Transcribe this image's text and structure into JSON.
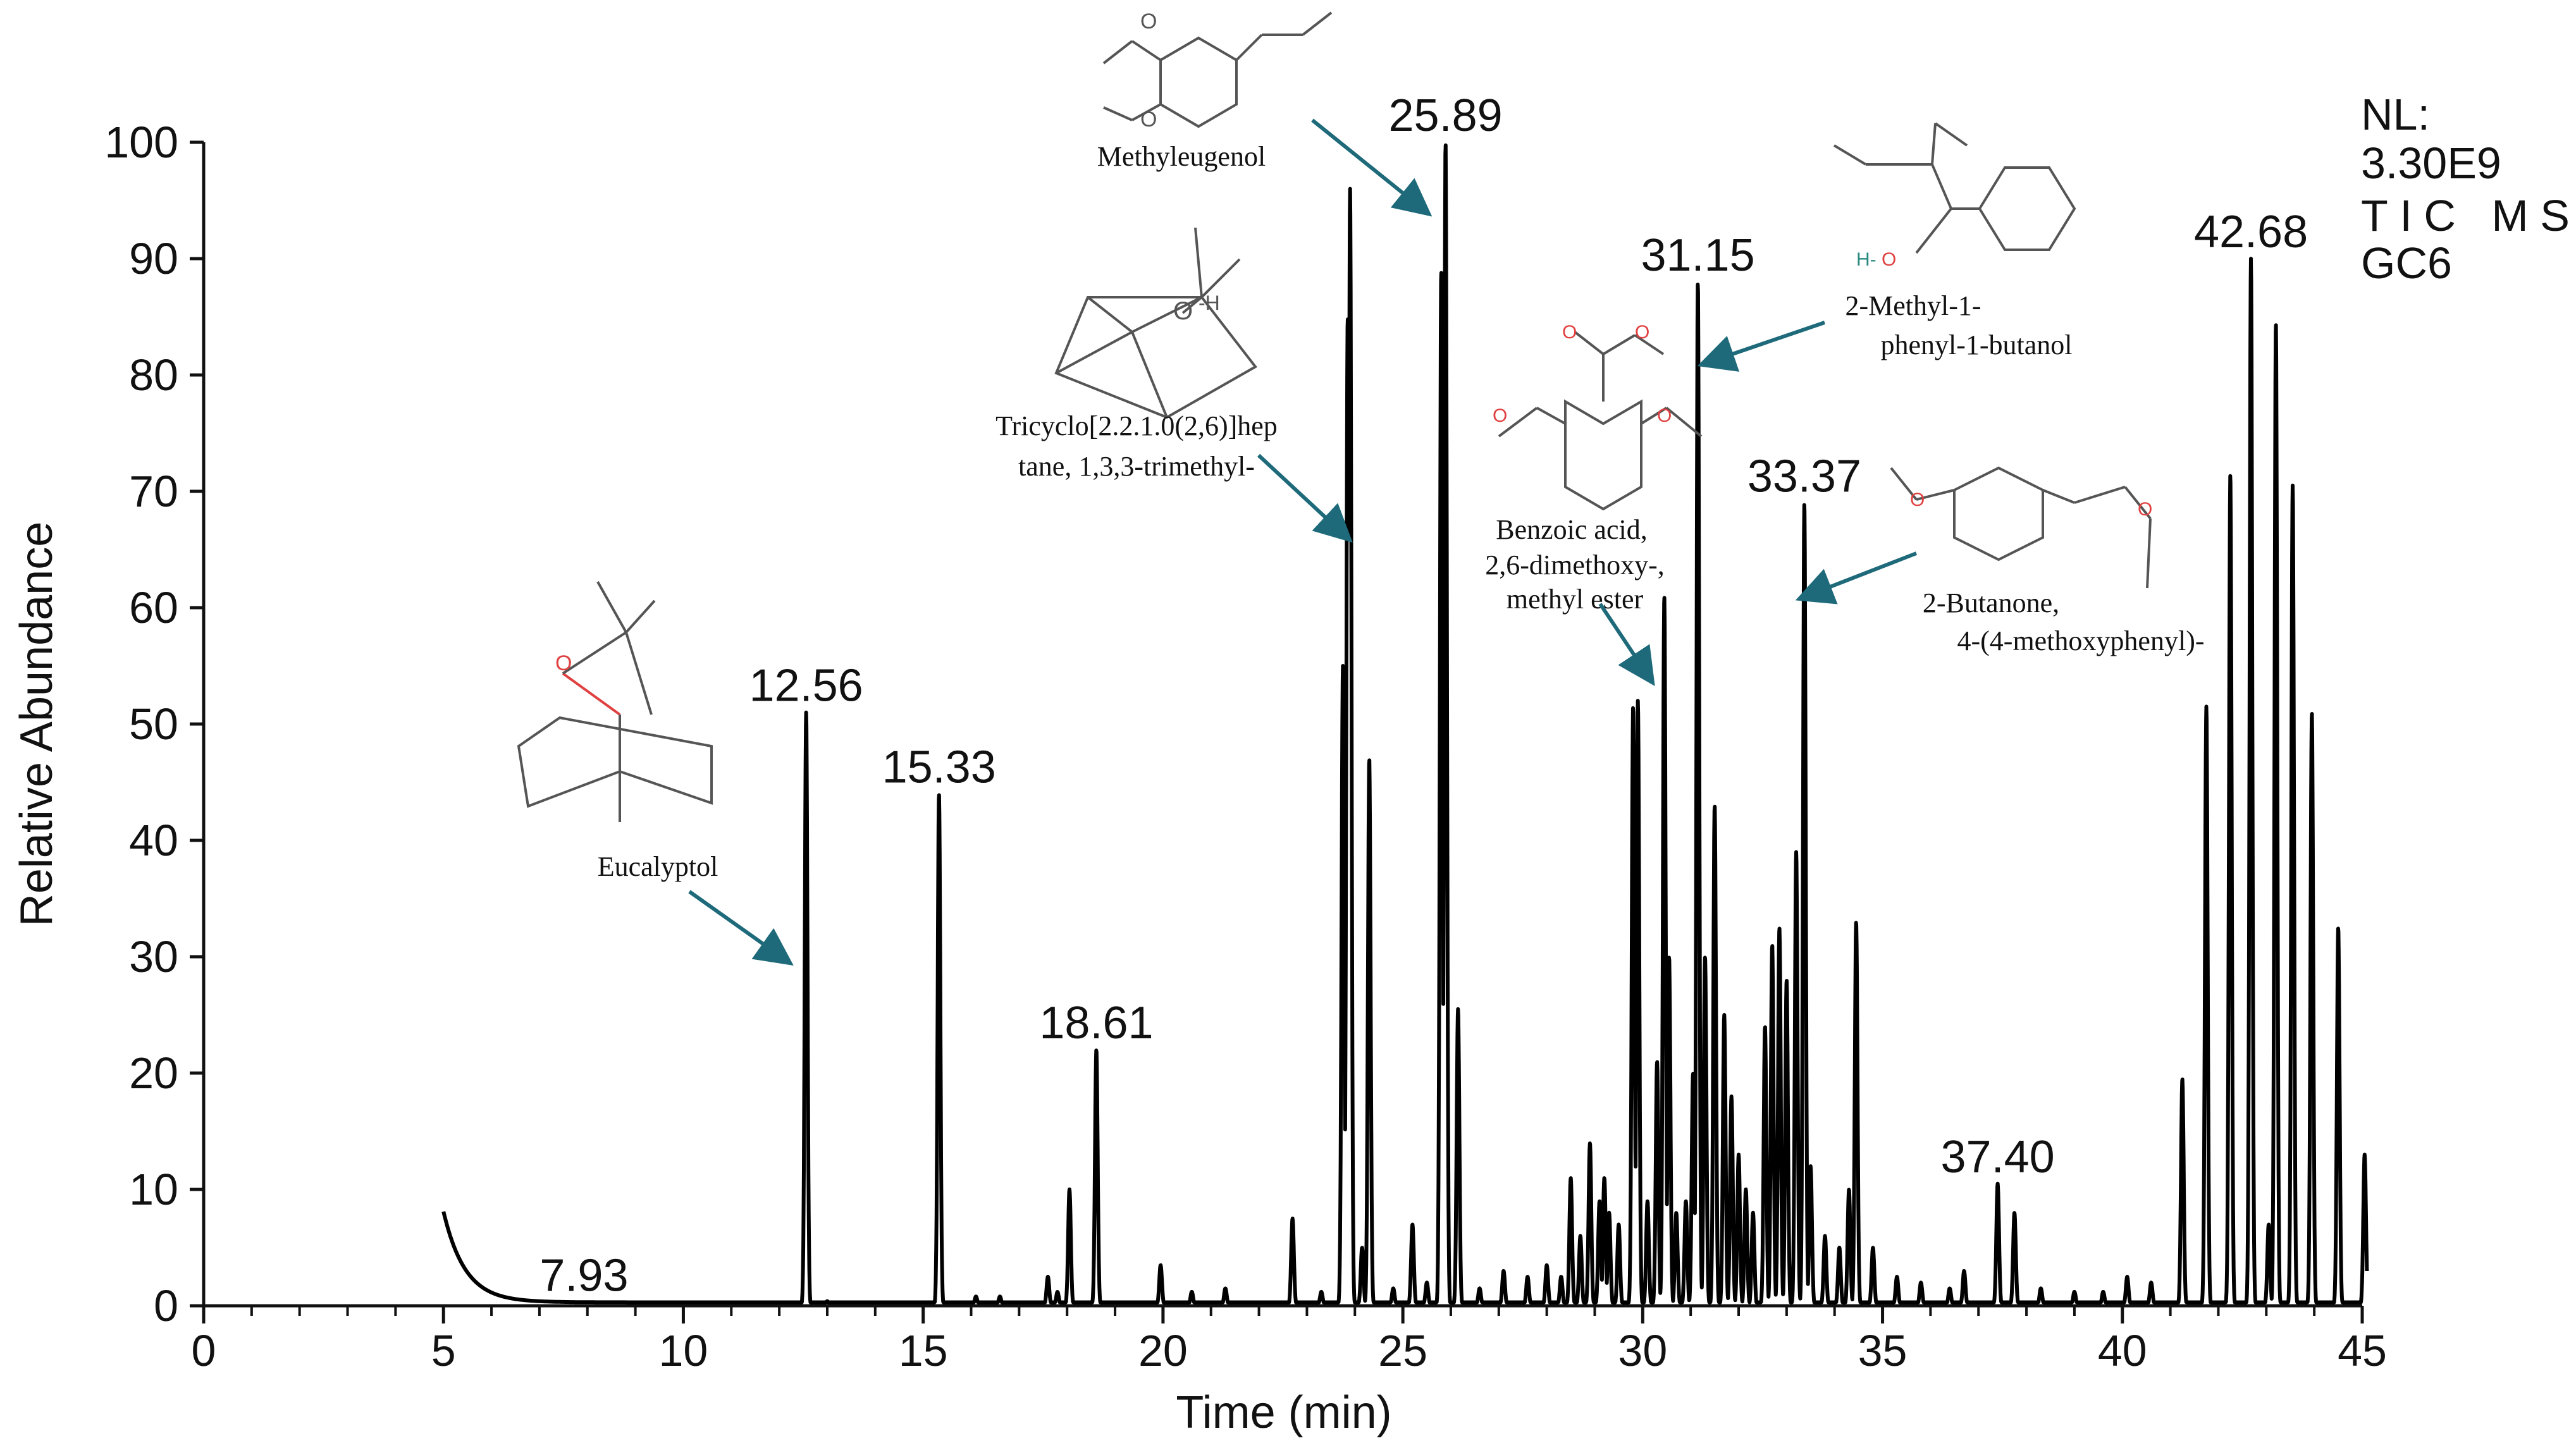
{
  "chart_data": {
    "type": "line",
    "xlabel": "Time (min)",
    "ylabel": "Relative Abundance",
    "xlim": [
      0,
      45
    ],
    "ylim": [
      0,
      100
    ],
    "x_ticks": [
      "0",
      "5",
      "10",
      "15",
      "20",
      "25",
      "30",
      "35",
      "40",
      "45"
    ],
    "y_ticks": [
      "0",
      "10",
      "20",
      "30",
      "40",
      "50",
      "60",
      "70",
      "80",
      "90",
      "100"
    ],
    "nl_info": [
      "NL:",
      "3.30E9",
      "TIC MS",
      "GC6"
    ],
    "peak_labels": [
      {
        "text": "7.93",
        "x": 7.93,
        "y": 0.3
      },
      {
        "text": "12.56",
        "x": 12.56,
        "y": 51
      },
      {
        "text": "15.33",
        "x": 15.33,
        "y": 44
      },
      {
        "text": "18.61",
        "x": 18.61,
        "y": 22
      },
      {
        "text": "25.89",
        "x": 25.89,
        "y": 100
      },
      {
        "text": "31.15",
        "x": 31.15,
        "y": 88
      },
      {
        "text": "33.37",
        "x": 33.37,
        "y": 69
      },
      {
        "text": "37.40",
        "x": 37.4,
        "y": 10.5
      },
      {
        "text": "42.68",
        "x": 42.68,
        "y": 90
      }
    ],
    "compounds": [
      {
        "lines": [
          "Eucalyptol"
        ]
      },
      {
        "lines": [
          "Tricyclo[2.2.1.0(2,6)]hep",
          "tane, 1,3,3-trimethyl-"
        ]
      },
      {
        "lines": [
          "Methyleugenol"
        ]
      },
      {
        "lines": [
          "Benzoic acid,",
          "2,6-dimethoxy-,",
          "methyl ester"
        ]
      },
      {
        "lines": [
          "2-Methyl-1-",
          "phenyl-1-butanol"
        ]
      },
      {
        "lines": [
          "2-Butanone,",
          "4-(4-methoxyphenyl)-"
        ]
      }
    ],
    "series": [
      {
        "baseline": 0.3,
        "start_x": 5.0,
        "end_x": 45.1,
        "decay": {
          "x0": 5.0,
          "y0": 7.8,
          "tau": 0.45
        },
        "peaks": [
          [
            7.93,
            0.3
          ],
          [
            10.2,
            0.2
          ],
          [
            12.56,
            51
          ],
          [
            13.0,
            0.4
          ],
          [
            15.33,
            44
          ],
          [
            16.1,
            0.8
          ],
          [
            16.6,
            0.8
          ],
          [
            17.6,
            2.5
          ],
          [
            17.8,
            1.2
          ],
          [
            18.05,
            10
          ],
          [
            18.61,
            22
          ],
          [
            19.95,
            3.5
          ],
          [
            20.6,
            1.2
          ],
          [
            21.3,
            1.5
          ],
          [
            22.7,
            7.5
          ],
          [
            23.3,
            1.2
          ],
          [
            23.75,
            55
          ],
          [
            23.85,
            85
          ],
          [
            23.9,
            96
          ],
          [
            24.15,
            5
          ],
          [
            24.3,
            47
          ],
          [
            24.8,
            1.5
          ],
          [
            25.2,
            7
          ],
          [
            25.5,
            2
          ],
          [
            25.8,
            89
          ],
          [
            25.89,
            100
          ],
          [
            26.15,
            25.5
          ],
          [
            26.6,
            1.5
          ],
          [
            27.1,
            3
          ],
          [
            27.6,
            2.5
          ],
          [
            28.0,
            3.5
          ],
          [
            28.3,
            2.5
          ],
          [
            28.5,
            11
          ],
          [
            28.7,
            6
          ],
          [
            28.9,
            14
          ],
          [
            29.1,
            9
          ],
          [
            29.2,
            11
          ],
          [
            29.3,
            8
          ],
          [
            29.5,
            7
          ],
          [
            29.8,
            51.5
          ],
          [
            29.9,
            52
          ],
          [
            30.1,
            9
          ],
          [
            30.3,
            21
          ],
          [
            30.45,
            61
          ],
          [
            30.55,
            30
          ],
          [
            30.7,
            8
          ],
          [
            30.9,
            9
          ],
          [
            31.05,
            20
          ],
          [
            31.15,
            88
          ],
          [
            31.3,
            30
          ],
          [
            31.5,
            43
          ],
          [
            31.7,
            25
          ],
          [
            31.85,
            18
          ],
          [
            32.0,
            13
          ],
          [
            32.15,
            10
          ],
          [
            32.3,
            8
          ],
          [
            32.55,
            24
          ],
          [
            32.7,
            31
          ],
          [
            32.85,
            32.5
          ],
          [
            33.0,
            28
          ],
          [
            33.2,
            39
          ],
          [
            33.37,
            69
          ],
          [
            33.5,
            12
          ],
          [
            33.8,
            6
          ],
          [
            34.1,
            5
          ],
          [
            34.3,
            10
          ],
          [
            34.45,
            33
          ],
          [
            34.8,
            5
          ],
          [
            35.3,
            2.5
          ],
          [
            35.8,
            2
          ],
          [
            36.4,
            1.5
          ],
          [
            36.7,
            3
          ],
          [
            37.4,
            10.5
          ],
          [
            37.75,
            8
          ],
          [
            38.3,
            1.5
          ],
          [
            39.0,
            1.2
          ],
          [
            39.6,
            1.2
          ],
          [
            40.1,
            2.5
          ],
          [
            40.6,
            2
          ],
          [
            41.25,
            19.5
          ],
          [
            41.75,
            51.5
          ],
          [
            42.25,
            71.5
          ],
          [
            42.68,
            90
          ],
          [
            43.05,
            7
          ],
          [
            43.2,
            84.5
          ],
          [
            43.55,
            70.5
          ],
          [
            43.95,
            51
          ],
          [
            44.5,
            32.5
          ],
          [
            45.05,
            13
          ]
        ]
      }
    ]
  }
}
